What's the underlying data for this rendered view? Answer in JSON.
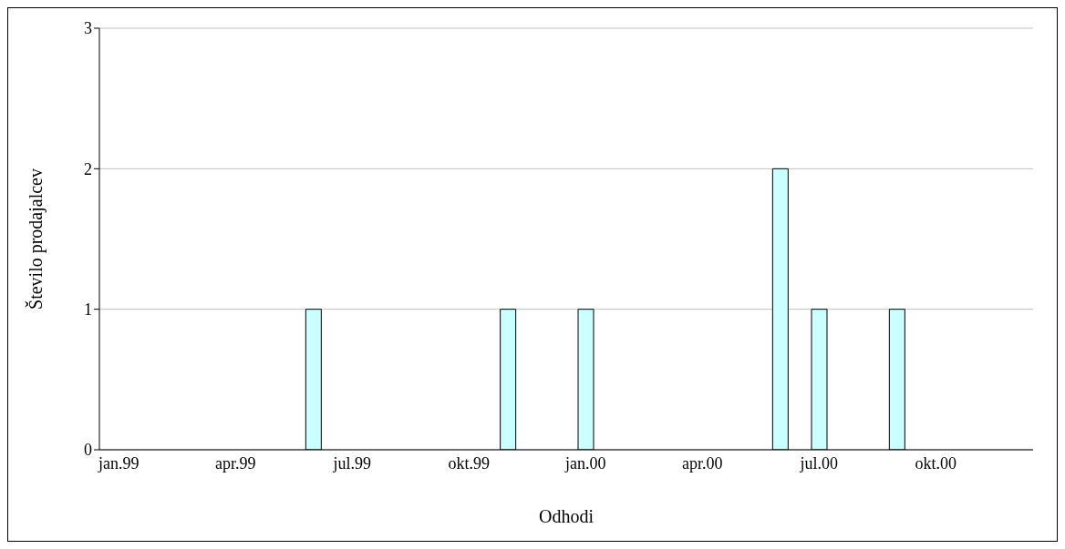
{
  "chart_data": {
    "type": "bar",
    "xlabel": "Odhodi",
    "ylabel": "Število prodajalcev",
    "categories": [
      "jan.99",
      null,
      null,
      "apr.99",
      null,
      null,
      "jul.99",
      null,
      null,
      "okt.99",
      null,
      null,
      "jan.00",
      null,
      null,
      "apr.00",
      null,
      null,
      "jul.00",
      null,
      null,
      "okt.00",
      null,
      null
    ],
    "values": [
      0,
      0,
      0,
      0,
      0,
      1,
      0,
      0,
      0,
      0,
      1,
      0,
      1,
      0,
      0,
      0,
      0,
      2,
      1,
      0,
      1,
      0,
      0,
      0
    ],
    "color": "#ccffff",
    "ylim": [
      0,
      3
    ],
    "yticks": [
      0,
      1,
      2,
      3
    ],
    "grid": "y"
  }
}
